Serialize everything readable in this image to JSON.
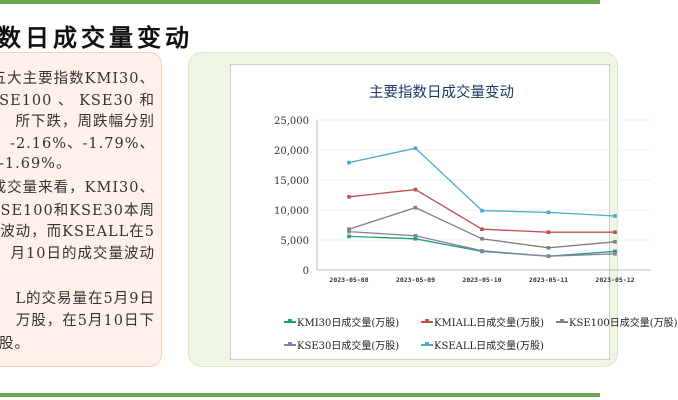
{
  "page_title": "数日成交量变动",
  "summary_lines": [
    "五大主要指数KMI30、",
    " KSE100 、 KSE30 和",
    "所下跌，周跌幅分别",
    "、-2.16%、-1.79%、",
    "-1.69%。",
    "成交量来看，KMI30、",
    "KSE100和KSE30本周",
    "波动，而KSEALL在5",
    "月10日的成交量波动",
    "L的交易量在5月9日",
    "万股，在5月10日下",
    "股。"
  ],
  "chart_data": {
    "type": "line",
    "title": "主要指数日成交量变动",
    "categories": [
      "2023-05-08",
      "2023-05-09",
      "2023-05-10",
      "2023-05-11",
      "2023-05-12"
    ],
    "ylim": [
      0,
      25000
    ],
    "yticks": [
      "0",
      "5,000",
      "10,000",
      "15,000",
      "20,000",
      "25,000"
    ],
    "yticks_values": [
      0,
      5000,
      10000,
      15000,
      20000,
      25000
    ],
    "legend_position": "bottom",
    "series": [
      {
        "name": "KMI30日成交量(万股)",
        "color": "#1aa36b",
        "values": [
          5600,
          5200,
          3100,
          2300,
          3100
        ]
      },
      {
        "name": "KMIALL日成交量(万股)",
        "color": "#c0504d",
        "values": [
          12200,
          13400,
          6800,
          6300,
          6300
        ]
      },
      {
        "name": "KSE100日成交量(万股)",
        "color": "#7f7f7f",
        "values": [
          6800,
          10400,
          5200,
          3700,
          4700
        ]
      },
      {
        "name": "KSE30日成交量(万股)",
        "color": "#8a7fa8",
        "values": [
          6400,
          5700,
          3200,
          2300,
          2700
        ]
      },
      {
        "name": "KSEALL日成交量(万股)",
        "color": "#4bacc6",
        "values": [
          17900,
          20300,
          9900,
          9600,
          9000
        ]
      }
    ]
  }
}
